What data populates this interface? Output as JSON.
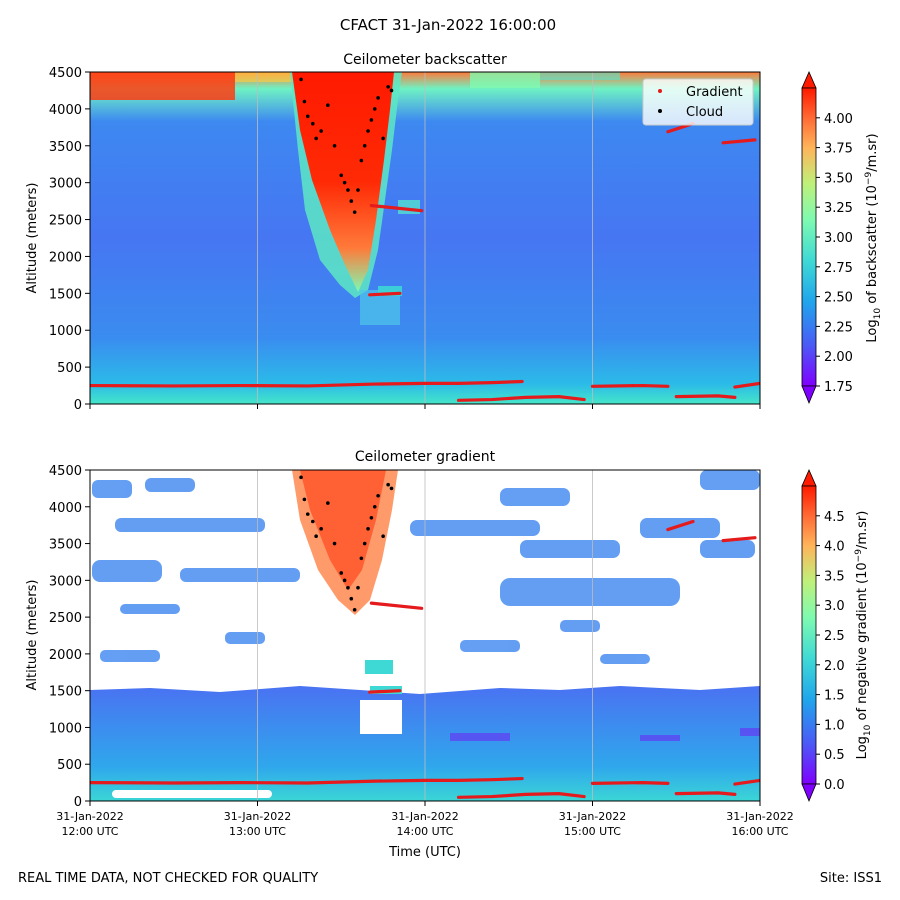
{
  "figure": {
    "title": "CFACT 31-Jan-2022 16:00:00",
    "footer_left": "REAL TIME DATA, NOT CHECKED FOR QUALITY",
    "footer_right": "Site: ISS1"
  },
  "colors": {
    "gradient_points": "#e41a1c",
    "cloud_points": "#000000",
    "grid": "#bdbdbd",
    "colormap": [
      "#7f00ff",
      "#4a5cf6",
      "#20a4ec",
      "#3fd9d5",
      "#7ffab0",
      "#bff07a",
      "#ffb45a",
      "#ff6a35",
      "#ff1a00"
    ]
  },
  "chart_data": [
    {
      "type": "heatmap",
      "title": "Ceilometer backscatter",
      "ylabel": "Altitude (meters)",
      "xlabel": "",
      "xlim": [
        "31-Jan-2022 12:00 UTC",
        "31-Jan-2022 16:00 UTC"
      ],
      "ylim": [
        0,
        4500
      ],
      "yticks": [
        0,
        500,
        1000,
        1500,
        2000,
        2500,
        3000,
        3500,
        4000,
        4500
      ],
      "grid": "vertical",
      "legend": {
        "placement": "top-right",
        "entries": [
          "Gradient",
          "Cloud"
        ]
      },
      "colorbar": {
        "label_prefix": "Log",
        "label_sub": "10",
        "label_mid": " of backscatter (10",
        "label_sup": "−9",
        "label_suffix": "/m.sr)",
        "range": [
          1.75,
          4.25
        ],
        "ticks": [
          "1.75",
          "2.00",
          "2.25",
          "2.50",
          "2.75",
          "3.00",
          "3.25",
          "3.50",
          "3.75",
          "4.00"
        ]
      }
    },
    {
      "type": "heatmap",
      "title": "Ceilometer gradient",
      "ylabel": "Altitude (meters)",
      "xlabel": "Time (UTC)",
      "xlim": [
        "31-Jan-2022 12:00 UTC",
        "31-Jan-2022 16:00 UTC"
      ],
      "ylim": [
        0,
        4500
      ],
      "yticks": [
        0,
        500,
        1000,
        1500,
        2000,
        2500,
        3000,
        3500,
        4000,
        4500
      ],
      "xticks": [
        {
          "date": "31-Jan-2022",
          "time": "12:00 UTC",
          "hour": 12
        },
        {
          "date": "31-Jan-2022",
          "time": "13:00 UTC",
          "hour": 13
        },
        {
          "date": "31-Jan-2022",
          "time": "14:00 UTC",
          "hour": 14
        },
        {
          "date": "31-Jan-2022",
          "time": "15:00 UTC",
          "hour": 15
        },
        {
          "date": "31-Jan-2022",
          "time": "16:00 UTC",
          "hour": 16
        }
      ],
      "grid": "vertical",
      "colorbar": {
        "label_prefix": "Log",
        "label_sub": "10",
        "label_mid": " of negative gradient (10",
        "label_sup": "−9",
        "label_suffix": "/m.sr)",
        "range": [
          0,
          5
        ],
        "ticks": [
          "0.0",
          "0.5",
          "1.0",
          "1.5",
          "2.0",
          "2.5",
          "3.0",
          "3.5",
          "4.0",
          "4.5"
        ]
      }
    }
  ],
  "series": {
    "gradient_layers": [
      {
        "name": "Gradient",
        "t": [
          12.0,
          12.5,
          12.9,
          13.3,
          13.7,
          14.0,
          14.2,
          14.4,
          14.58
        ],
        "alt": [
          250,
          245,
          250,
          245,
          270,
          280,
          280,
          290,
          305
        ]
      },
      {
        "name": "Gradient",
        "t": [
          14.2,
          14.4,
          14.6,
          14.8,
          14.95
        ],
        "alt": [
          50,
          60,
          90,
          100,
          60
        ]
      },
      {
        "name": "Gradient",
        "t": [
          15.0,
          15.3,
          15.45
        ],
        "alt": [
          240,
          250,
          240
        ]
      },
      {
        "name": "Gradient",
        "t": [
          15.5,
          15.75,
          15.85
        ],
        "alt": [
          100,
          110,
          90
        ]
      },
      {
        "name": "Gradient",
        "t": [
          15.85,
          16.0
        ],
        "alt": [
          230,
          280
        ]
      },
      {
        "name": "Gradient",
        "t": [
          13.68,
          13.98
        ],
        "alt": [
          2690,
          2620
        ]
      },
      {
        "name": "Gradient",
        "t": [
          13.67,
          13.85
        ],
        "alt": [
          1480,
          1500
        ]
      },
      {
        "name": "Gradient",
        "t": [
          15.45,
          15.6
        ],
        "alt": [
          3690,
          3800
        ]
      },
      {
        "name": "Gradient",
        "t": [
          15.78,
          15.97
        ],
        "alt": [
          3540,
          3580
        ]
      }
    ],
    "cloud_points": {
      "name": "Cloud",
      "t": [
        13.26,
        13.28,
        13.3,
        13.33,
        13.35,
        13.38,
        13.42,
        13.46,
        13.5,
        13.52,
        13.54,
        13.56,
        13.58,
        13.6,
        13.62,
        13.64,
        13.66,
        13.68,
        13.7,
        13.72,
        13.75,
        13.78,
        13.8
      ],
      "alt": [
        4400,
        4100,
        3900,
        3800,
        3600,
        3700,
        4050,
        3500,
        3100,
        3000,
        2900,
        2750,
        2600,
        2900,
        3300,
        3500,
        3700,
        3850,
        4000,
        4150,
        3600,
        4300,
        4250
      ]
    }
  }
}
